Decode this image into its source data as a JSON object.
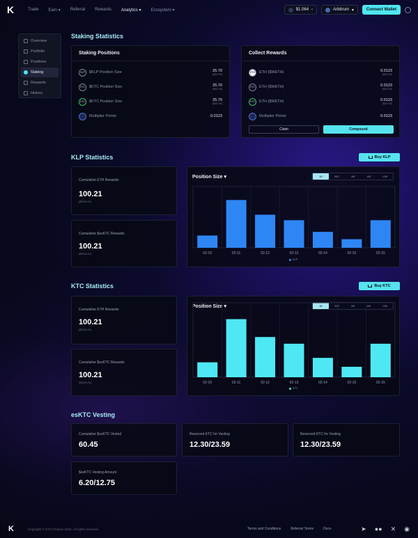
{
  "nav": {
    "logo": "K",
    "links": [
      "Trade",
      "Earn ▾",
      "Referral",
      "Rewards",
      "Analytics ▾",
      "Ecosystem ▾"
    ],
    "price": "$1.064",
    "network": "Arbitrum",
    "connect": "Connect Wallet"
  },
  "sidebar": {
    "items": [
      "Overview",
      "Portfolio",
      "Positions",
      "Staking",
      "Rewards",
      "History"
    ]
  },
  "staking": {
    "title": "Staking Statistics",
    "positions": {
      "title": "Staking Positions",
      "rows": [
        {
          "icon": "KLP",
          "label": "$KLP Position Size",
          "value": "25.70",
          "sub": "($30.09)"
        },
        {
          "icon": "KTC",
          "label": "$KTC Position Size",
          "value": "25.70",
          "sub": "($30.09)"
        },
        {
          "icon": "KTC",
          "label": "$KTC Position Size",
          "value": "25.70",
          "sub": "($30.09)"
        },
        {
          "icon": "",
          "label": "Multiplier Points",
          "value": "0.0123",
          "sub": ""
        }
      ]
    },
    "rewards": {
      "title": "Collect Rewards",
      "rows": [
        {
          "icon": "ETH",
          "label": "ETH ($WETH)",
          "value": "0.0123",
          "sub": "($30.09)"
        },
        {
          "icon": "KTC",
          "label": "ETH ($WETH)",
          "value": "0.0123",
          "sub": "($30.09)"
        },
        {
          "icon": "KTC",
          "label": "ETH ($WETH)",
          "value": "0.0123",
          "sub": "($30.09)"
        },
        {
          "icon": "",
          "label": "Multiplier Points",
          "value": "0.0123",
          "sub": ""
        }
      ],
      "claim": "Claim",
      "compound": "Compound"
    }
  },
  "klp": {
    "title": "KLP Statistics",
    "buy": "Buy KLP",
    "eth_label": "Cumulative ETH Rewards",
    "eth_value": "100.21",
    "eth_sub": "($3000.21)",
    "esktc_label": "Cumulative $esKTC Rewards",
    "esktc_value": "100.21",
    "esktc_sub": "($3000.21)",
    "chart_title": "Position Size ▾",
    "ranges": [
      "1D",
      "30D",
      "3M",
      "6M",
      "12M"
    ],
    "legend": "KLP",
    "color": "#2e86f5"
  },
  "ktc": {
    "title": "KTC Statistics",
    "buy": "Buy KTC",
    "eth_label": "Cumulative ETH Rewards",
    "eth_value": "100.21",
    "eth_sub": "($3000.21)",
    "esktc_label": "Cumulative $esKTC Rewards",
    "esktc_value": "100.21",
    "esktc_sub": "($3000.21)",
    "chart_title": "Position Size ▾",
    "ranges": [
      "1D",
      "30D",
      "3M",
      "6M",
      "12M"
    ],
    "legend": "KTC",
    "color": "#4ee8f4"
  },
  "chart_data": [
    {
      "type": "bar",
      "categories": [
        "02-10",
        "02-11",
        "02-12",
        "02-13",
        "02-14",
        "02-15",
        "02-15"
      ],
      "values": [
        20,
        78,
        54,
        45,
        26,
        14,
        45
      ],
      "ylim": [
        0,
        100
      ],
      "series_name": "KLP",
      "grid": true
    },
    {
      "type": "bar",
      "categories": [
        "02-10",
        "02-11",
        "02-12",
        "02-13",
        "02-14",
        "02-15",
        "02-15"
      ],
      "values": [
        20,
        78,
        54,
        45,
        26,
        14,
        45
      ],
      "ylim": [
        0,
        100
      ],
      "series_name": "KTC",
      "grid": true
    }
  ],
  "vesting": {
    "title": "esKTC Vesting",
    "cards": [
      {
        "label": "Cumulative $esKTC Vested",
        "value": "60.45"
      },
      {
        "label": "Reserved KTC for Vesting",
        "value": "12.30/23.59"
      },
      {
        "label": "Reserved KTC for Vesting",
        "value": "12.30/23.59"
      },
      {
        "label": "$esKTC Vesting Amount",
        "value": "6.20/12.75"
      }
    ]
  },
  "footer": {
    "logo": "K",
    "copyright": "Copyright © KTX.Finance 2024. All rights reserved.",
    "links": [
      "Terms and Conditions",
      "Referral Terms",
      "Docs"
    ],
    "socials": [
      "telegram-icon",
      "medium-icon",
      "x-icon",
      "discord-icon"
    ]
  }
}
